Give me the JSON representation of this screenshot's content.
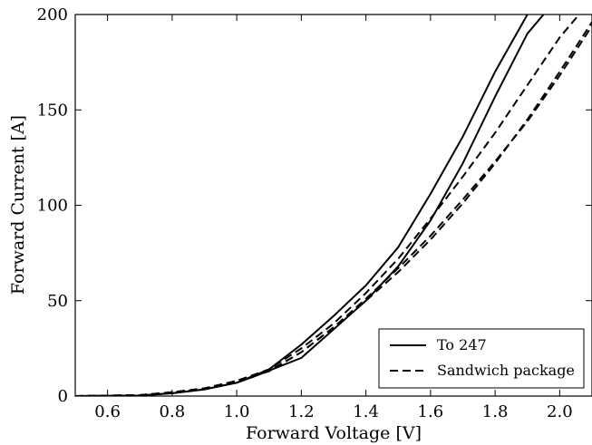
{
  "chart_data": {
    "type": "line",
    "title": "",
    "xlabel": "Forward Voltage [V]",
    "ylabel": "Forward Current [A]",
    "xlim": [
      0.5,
      2.1
    ],
    "ylim": [
      0,
      200
    ],
    "xticks": [
      "0.6",
      "0.8",
      "1.0",
      "1.2",
      "1.4",
      "1.6",
      "1.8",
      "2.0"
    ],
    "yticks": [
      "0",
      "50",
      "100",
      "150",
      "200"
    ],
    "grid": false,
    "legend": {
      "placement": "bottom-right",
      "entries": [
        {
          "label": "To 247",
          "style": "solid"
        },
        {
          "label": "Sandwich package",
          "style": "dashed"
        }
      ]
    },
    "series": [
      {
        "style": "solid",
        "x": [
          0.5,
          0.7,
          0.8,
          0.9,
          1.0,
          1.1,
          1.2,
          1.3,
          1.4,
          1.5,
          1.6,
          1.7,
          1.8,
          1.9
        ],
        "y": [
          0,
          0.3,
          1.5,
          3.5,
          7,
          14,
          27,
          42,
          58,
          78,
          106,
          136,
          170,
          200
        ]
      },
      {
        "style": "solid",
        "x": [
          0.5,
          0.7,
          0.8,
          0.9,
          1.0,
          1.05,
          1.2,
          1.3,
          1.4,
          1.5,
          1.6,
          1.7,
          1.8,
          1.9,
          1.95
        ],
        "y": [
          0,
          0.3,
          1.5,
          3.5,
          7,
          10,
          20,
          35,
          50,
          68,
          92,
          122,
          157,
          190,
          200
        ]
      },
      {
        "style": "dashed",
        "x": [
          0.5,
          0.7,
          0.8,
          0.9,
          1.0,
          1.1,
          1.2,
          1.3,
          1.4,
          1.5,
          1.6,
          1.7,
          1.8,
          1.9,
          2.0,
          2.1
        ],
        "y": [
          0,
          0.5,
          2,
          4,
          8,
          14,
          25,
          38,
          54,
          72,
          93,
          115,
          138,
          163,
          188,
          208
        ]
      },
      {
        "style": "dashed",
        "x": [
          0.5,
          0.7,
          0.8,
          0.9,
          1.0,
          1.1,
          1.2,
          1.3,
          1.4,
          1.5,
          1.6,
          1.7,
          1.8,
          1.9,
          2.0,
          2.1
        ],
        "y": [
          0,
          0.5,
          2,
          4,
          8,
          13,
          23,
          36,
          51,
          67,
          84,
          103,
          123,
          144,
          168,
          194
        ]
      },
      {
        "style": "dashed",
        "x": [
          0.5,
          0.7,
          0.8,
          0.9,
          1.0,
          1.1,
          1.2,
          1.3,
          1.4,
          1.5,
          1.6,
          1.7,
          1.8,
          1.9,
          2.0,
          2.1
        ],
        "y": [
          0,
          0.5,
          2,
          4,
          8,
          13,
          23,
          36,
          50,
          65,
          82,
          101,
          122,
          145,
          170,
          196
        ]
      }
    ]
  }
}
